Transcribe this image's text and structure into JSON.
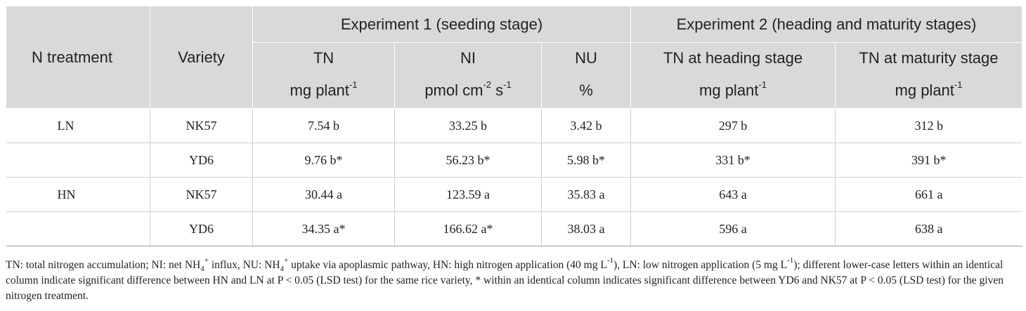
{
  "header": {
    "n_treatment": "N treatment",
    "variety": "Variety",
    "exp1": "Experiment 1 (seeding stage)",
    "exp2": "Experiment 2 (heading and maturity stages)",
    "tn": "TN",
    "ni": "NI",
    "nu": "NU",
    "tn_heading": "TN at heading stage",
    "tn_maturity": "TN at maturity stage",
    "unit_mg": "mg plant",
    "unit_mg_exp": "-1",
    "unit_pmol": "pmol cm",
    "unit_pmol_exp1": "-2",
    "unit_s": "s",
    "unit_s_exp": "-1",
    "unit_pct": "%"
  },
  "rows": [
    {
      "treatment": "LN",
      "variety": "NK57",
      "tn": "7.54 b",
      "ni": "33.25 b",
      "nu": "3.42 b",
      "tn_heading": "297 b",
      "tn_maturity": "312 b"
    },
    {
      "treatment": "",
      "variety": "YD6",
      "tn": "9.76 b*",
      "ni": "56.23 b*",
      "nu": "5.98 b*",
      "tn_heading": "331 b*",
      "tn_maturity": "391 b*"
    },
    {
      "treatment": "HN",
      "variety": "NK57",
      "tn": "30.44 a",
      "ni": "123.59 a",
      "nu": "35.83 a",
      "tn_heading": "643 a",
      "tn_maturity": "661 a"
    },
    {
      "treatment": "",
      "variety": "YD6",
      "tn": "34.35 a*",
      "ni": "166.62 a*",
      "nu": "38.03 a",
      "tn_heading": "596 a",
      "tn_maturity": "638 a"
    }
  ],
  "footnote": {
    "p1": "TN: total nitrogen accumulation; NI: net NH",
    "nh4_sub": "4",
    "nh4_sup": "+",
    "p2": " influx, NU: NH",
    "p3": " uptake via apoplasmic pathway, HN: high nitrogen application (40 mg L",
    "exp": "-1",
    "p4": "), LN: low nitrogen application (5 mg L",
    "p5": "); different lower-case letters within an identical column indicate significant difference between HN and LN at P < 0.05 (LSD test) for the same rice variety, * within an identical column indicates significant difference between YD6 and NK57 at P < 0.05 (LSD test) for the given nitrogen treatment."
  }
}
